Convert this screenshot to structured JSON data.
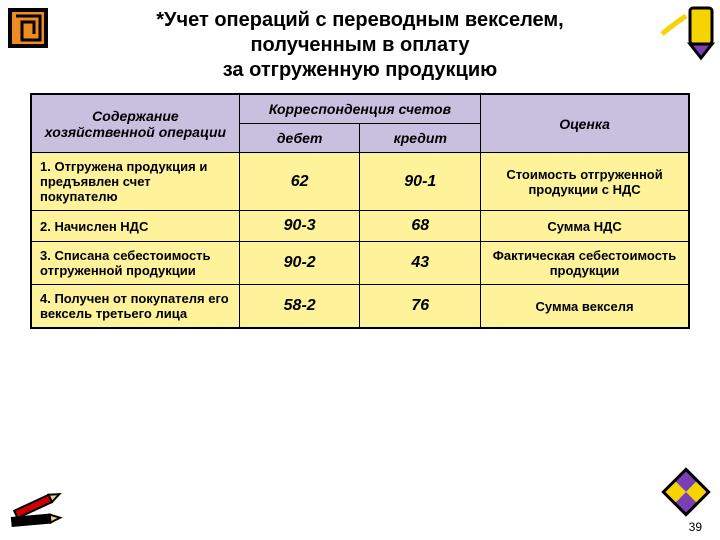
{
  "title": {
    "line1": "*Учет операций с переводным векселем,",
    "line2": "полученным в оплату",
    "line3": "за отгруженную продукцию",
    "fontsize": 20,
    "color": "#000000"
  },
  "table": {
    "header_bg": "#c9c0e0",
    "row_bg": "#fef29a",
    "border_color": "#000000",
    "header_fontsize": 14,
    "body_fontsize": 13,
    "value_fontsize": 16,
    "columns": {
      "operation": "Содержание хозяйственной операции",
      "corr_top": "Корреспонденция счетов",
      "debit": "дебет",
      "credit": "кредит",
      "valuation": "Оценка"
    },
    "col_widths": {
      "op": 190,
      "debit": 110,
      "credit": 110,
      "val": 190
    },
    "rows": [
      {
        "op": "1. Отгружена продукция и предъявлен счет покупателю",
        "debit": "62",
        "credit": "90-1",
        "val": "Стоимость отгруженной продукции с НДС"
      },
      {
        "op": "2. Начислен НДС",
        "debit": "90-3",
        "credit": "68",
        "val": "Сумма НДС"
      },
      {
        "op": "3. Списана себестоимость отгруженной продукции",
        "debit": "90-2",
        "credit": "43",
        "val": "Фактическая себестоимость продукции"
      },
      {
        "op": "4. Получен от покупателя его вексель третьего лица",
        "debit": "58-2",
        "credit": "76",
        "val": "Сумма векселя"
      }
    ]
  },
  "decorations": {
    "crayon_yellow": "#f5d400",
    "crayon_purple": "#7a3fb5",
    "pencil_red": "#cc0000",
    "pencil_black": "#000000",
    "spiral_orange": "#f08a24"
  },
  "page_number": "39"
}
